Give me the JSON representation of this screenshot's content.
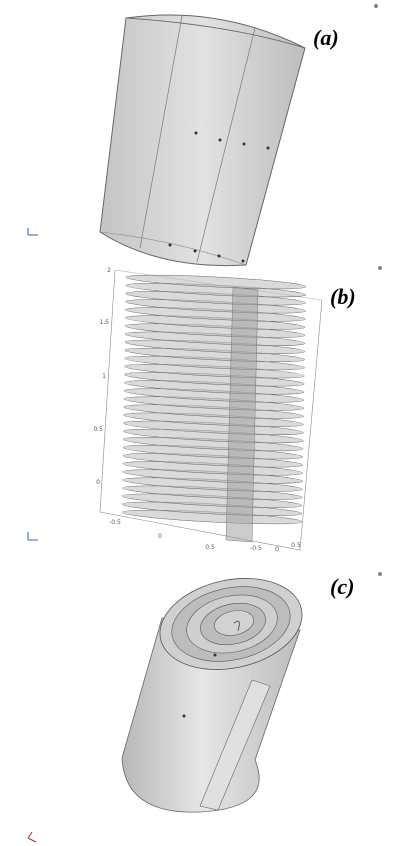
{
  "panels": [
    {
      "label": "(a)"
    },
    {
      "label": "(b)",
      "axis_labels": [
        "2",
        "1.5",
        "1",
        "0.5",
        "0",
        "-0.5",
        "0",
        "0.5",
        "-0.5",
        "0",
        "0.5"
      ]
    },
    {
      "label": "(c)"
    }
  ]
}
